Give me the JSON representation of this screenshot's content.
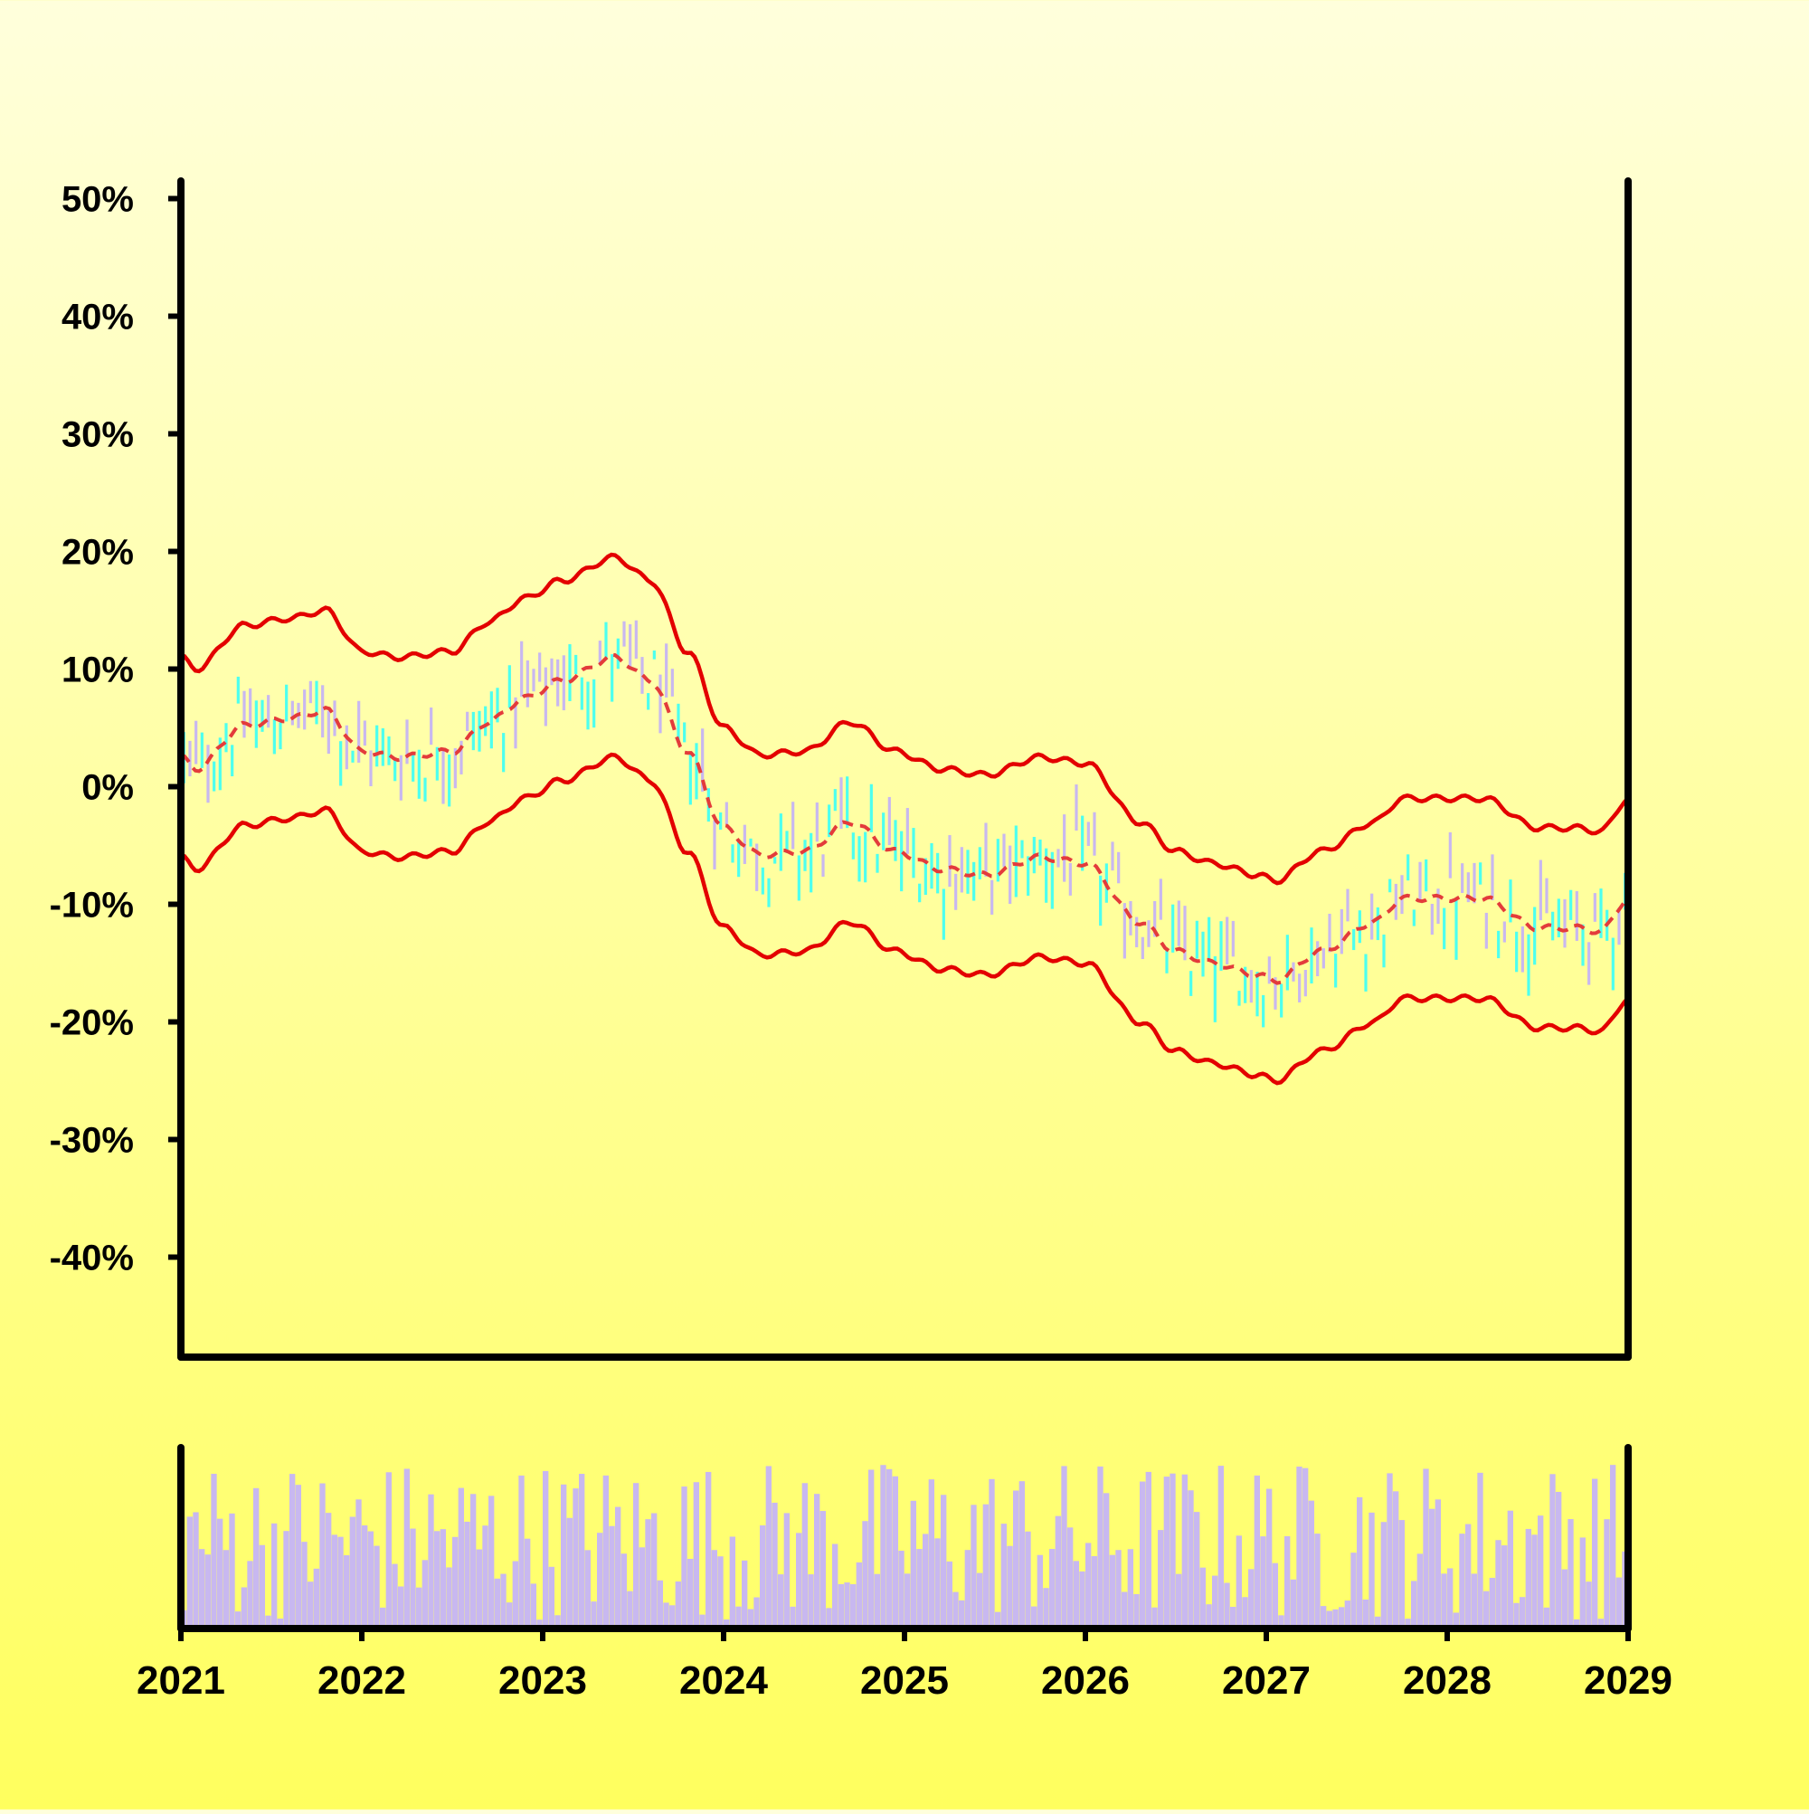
{
  "chart_data": [
    {
      "type": "ohlc",
      "title": "",
      "xlabel": "",
      "ylabel": "",
      "x_ticks": [
        "2021",
        "2022",
        "2023",
        "2024",
        "2025",
        "2026",
        "2027",
        "2028",
        "2029"
      ],
      "y_ticks": [
        "50%",
        "40%",
        "30%",
        "20%",
        "10%",
        "0%",
        "-10%",
        "-20%",
        "-30%",
        "-40%"
      ],
      "xlim": [
        "2021-01",
        "2029-01"
      ],
      "ylim": [
        -48.5,
        51.5
      ],
      "grid": false,
      "legend": "none",
      "colors": {
        "up": "#4dffef",
        "down": "#c8b8f0",
        "band": "#e30000",
        "midline": "#e33b3b"
      },
      "anchors_t": [
        2021.0,
        2021.08,
        2021.35,
        2021.6,
        2021.8,
        2022.0,
        2022.2,
        2022.5,
        2022.7,
        2022.9,
        2023.1,
        2023.4,
        2023.6,
        2023.8,
        2024.0,
        2024.2,
        2024.45,
        2024.7,
        2024.95,
        2025.2,
        2025.45,
        2025.75,
        2026.0,
        2026.3,
        2026.5,
        2026.7,
        2026.95,
        2027.05,
        2027.3,
        2027.6,
        2027.75,
        2028.0,
        2028.2,
        2028.5,
        2028.7,
        2028.85,
        2029.0
      ],
      "anchors_mid": [
        2.5,
        1.5,
        5.2,
        5.8,
        6.5,
        3.0,
        2.5,
        3.0,
        5.5,
        7.5,
        9.0,
        11.0,
        9.0,
        3.0,
        -3.5,
        -5.8,
        -5.5,
        -3.0,
        -5.5,
        -7.0,
        -7.5,
        -6.0,
        -6.5,
        -11.5,
        -14.0,
        -15.0,
        -16.0,
        -16.5,
        -14.0,
        -11.5,
        -9.5,
        -9.5,
        -9.5,
        -12.0,
        -12.0,
        -12.3,
        -9.5
      ],
      "band_half_width": 8.5,
      "candles": {
        "count": 240,
        "body_amplitude": 2.0,
        "wick_extra": 2.2,
        "noise_amplitude": 2.8
      },
      "volume": {
        "count": 240,
        "min_fraction": 0.05,
        "max_fraction": 0.98
      }
    }
  ]
}
